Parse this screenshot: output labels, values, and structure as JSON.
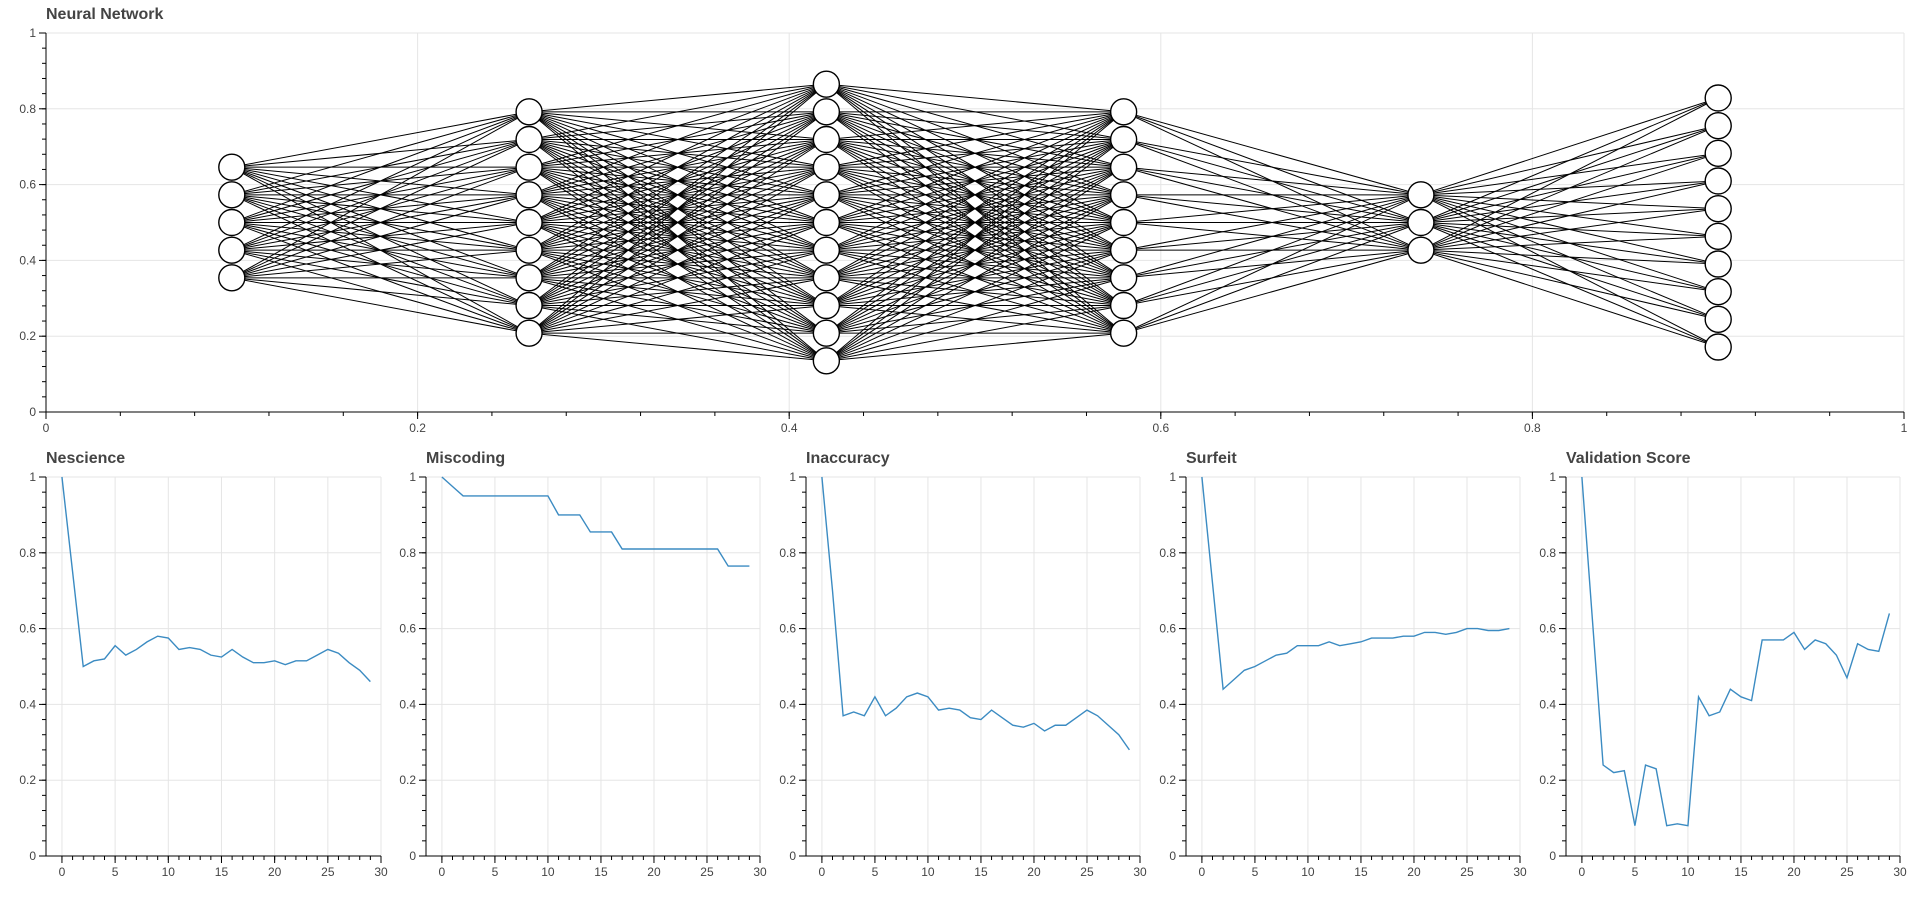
{
  "colors": {
    "series": "#3b8bc2",
    "grid": "#e5e5e5",
    "axis": "#000000",
    "text": "#444444"
  },
  "chart_data": [
    {
      "type": "network",
      "title": "Neural Network",
      "xlim": [
        0,
        1
      ],
      "ylim": [
        0,
        1
      ],
      "x_ticks": [
        "0",
        "0.2",
        "0.4",
        "0.6",
        "0.8",
        "1"
      ],
      "y_ticks": [
        "0",
        "0.2",
        "0.4",
        "0.6",
        "0.8",
        "1"
      ],
      "grid": true,
      "layers": [
        {
          "x": 0.1,
          "nodes": 5
        },
        {
          "x": 0.26,
          "nodes": 9
        },
        {
          "x": 0.42,
          "nodes": 11
        },
        {
          "x": 0.58,
          "nodes": 9
        },
        {
          "x": 0.74,
          "nodes": 3
        },
        {
          "x": 0.9,
          "nodes": 10
        }
      ]
    },
    {
      "type": "line",
      "title": "Nescience",
      "xlim": [
        -1.5,
        30
      ],
      "ylim": [
        0,
        1
      ],
      "x_ticks": [
        "0",
        "5",
        "10",
        "15",
        "20",
        "25",
        "30"
      ],
      "y_ticks": [
        "0",
        "0.2",
        "0.4",
        "0.6",
        "0.8",
        "1"
      ],
      "grid": true,
      "x": [
        0,
        1,
        2,
        3,
        4,
        5,
        6,
        7,
        8,
        9,
        10,
        11,
        12,
        13,
        14,
        15,
        16,
        17,
        18,
        19,
        20,
        21,
        22,
        23,
        24,
        25,
        26,
        27,
        28,
        29
      ],
      "y": [
        1.0,
        0.75,
        0.5,
        0.515,
        0.52,
        0.555,
        0.53,
        0.545,
        0.565,
        0.58,
        0.575,
        0.545,
        0.55,
        0.545,
        0.53,
        0.525,
        0.545,
        0.525,
        0.51,
        0.51,
        0.515,
        0.505,
        0.515,
        0.515,
        0.53,
        0.545,
        0.535,
        0.51,
        0.49,
        0.46
      ]
    },
    {
      "type": "line",
      "title": "Miscoding",
      "xlim": [
        -1.5,
        30
      ],
      "ylim": [
        0,
        1
      ],
      "x_ticks": [
        "0",
        "5",
        "10",
        "15",
        "20",
        "25",
        "30"
      ],
      "y_ticks": [
        "0",
        "0.2",
        "0.4",
        "0.6",
        "0.8",
        "1"
      ],
      "grid": true,
      "x": [
        0,
        1,
        2,
        3,
        4,
        5,
        6,
        7,
        8,
        9,
        10,
        11,
        12,
        13,
        14,
        15,
        16,
        17,
        18,
        19,
        20,
        21,
        22,
        23,
        24,
        25,
        26,
        27,
        28,
        29
      ],
      "y": [
        1.0,
        0.975,
        0.95,
        0.95,
        0.95,
        0.95,
        0.95,
        0.95,
        0.95,
        0.95,
        0.95,
        0.9,
        0.9,
        0.9,
        0.855,
        0.855,
        0.855,
        0.81,
        0.81,
        0.81,
        0.81,
        0.81,
        0.81,
        0.81,
        0.81,
        0.81,
        0.81,
        0.765,
        0.765,
        0.765
      ]
    },
    {
      "type": "line",
      "title": "Inaccuracy",
      "xlim": [
        -1.5,
        30
      ],
      "ylim": [
        0,
        1
      ],
      "x_ticks": [
        "0",
        "5",
        "10",
        "15",
        "20",
        "25",
        "30"
      ],
      "y_ticks": [
        "0",
        "0.2",
        "0.4",
        "0.6",
        "0.8",
        "1"
      ],
      "grid": true,
      "x": [
        0,
        1,
        2,
        3,
        4,
        5,
        6,
        7,
        8,
        9,
        10,
        11,
        12,
        13,
        14,
        15,
        16,
        17,
        18,
        19,
        20,
        21,
        22,
        23,
        24,
        25,
        26,
        27,
        28,
        29
      ],
      "y": [
        1.0,
        0.7,
        0.37,
        0.38,
        0.37,
        0.42,
        0.37,
        0.39,
        0.42,
        0.43,
        0.42,
        0.385,
        0.39,
        0.385,
        0.365,
        0.36,
        0.385,
        0.365,
        0.345,
        0.34,
        0.35,
        0.33,
        0.345,
        0.345,
        0.365,
        0.385,
        0.37,
        0.345,
        0.32,
        0.28
      ]
    },
    {
      "type": "line",
      "title": "Surfeit",
      "xlim": [
        -1.5,
        30
      ],
      "ylim": [
        0,
        1
      ],
      "x_ticks": [
        "0",
        "5",
        "10",
        "15",
        "20",
        "25",
        "30"
      ],
      "y_ticks": [
        "0",
        "0.2",
        "0.4",
        "0.6",
        "0.8",
        "1"
      ],
      "grid": true,
      "x": [
        0,
        1,
        2,
        3,
        4,
        5,
        6,
        7,
        8,
        9,
        10,
        11,
        12,
        13,
        14,
        15,
        16,
        17,
        18,
        19,
        20,
        21,
        22,
        23,
        24,
        25,
        26,
        27,
        28,
        29
      ],
      "y": [
        1.0,
        0.72,
        0.44,
        0.465,
        0.49,
        0.5,
        0.515,
        0.53,
        0.535,
        0.555,
        0.555,
        0.555,
        0.565,
        0.555,
        0.56,
        0.565,
        0.575,
        0.575,
        0.575,
        0.58,
        0.58,
        0.59,
        0.59,
        0.585,
        0.59,
        0.6,
        0.6,
        0.595,
        0.595,
        0.6
      ]
    },
    {
      "type": "line",
      "title": "Validation Score",
      "xlim": [
        -1.5,
        30
      ],
      "ylim": [
        0,
        1
      ],
      "x_ticks": [
        "0",
        "5",
        "10",
        "15",
        "20",
        "25",
        "30"
      ],
      "y_ticks": [
        "0",
        "0.2",
        "0.4",
        "0.6",
        "0.8",
        "1"
      ],
      "grid": true,
      "x": [
        0,
        1,
        2,
        3,
        4,
        5,
        6,
        7,
        8,
        9,
        10,
        11,
        12,
        13,
        14,
        15,
        16,
        17,
        18,
        19,
        20,
        21,
        22,
        23,
        24,
        25,
        26,
        27,
        28,
        29
      ],
      "y": [
        1.0,
        0.62,
        0.24,
        0.22,
        0.225,
        0.08,
        0.24,
        0.23,
        0.08,
        0.085,
        0.08,
        0.42,
        0.37,
        0.38,
        0.44,
        0.42,
        0.41,
        0.57,
        0.57,
        0.57,
        0.59,
        0.545,
        0.57,
        0.56,
        0.53,
        0.47,
        0.56,
        0.545,
        0.54,
        0.64
      ]
    }
  ]
}
